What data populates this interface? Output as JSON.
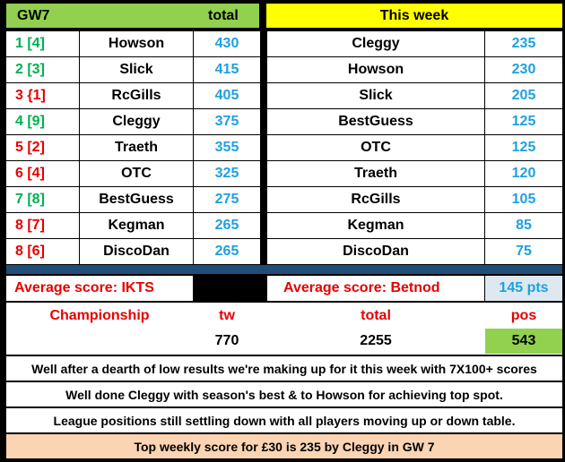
{
  "left_header": {
    "label": "GW7",
    "total_label": "total"
  },
  "right_header": {
    "label": "This week"
  },
  "standings": [
    {
      "pos": "1 [4]",
      "pos_color": "green",
      "name": "Howson",
      "score": "430"
    },
    {
      "pos": "2 [3]",
      "pos_color": "green",
      "name": "Slick",
      "score": "415"
    },
    {
      "pos": "3 {1]",
      "pos_color": "red",
      "name": "RcGills",
      "score": "405"
    },
    {
      "pos": "4 [9]",
      "pos_color": "green",
      "name": "Cleggy",
      "score": "375"
    },
    {
      "pos": "5 [2]",
      "pos_color": "red",
      "name": "Traeth",
      "score": "355"
    },
    {
      "pos": "6 [4]",
      "pos_color": "red",
      "name": "OTC",
      "score": "325"
    },
    {
      "pos": "7 [8]",
      "pos_color": "green",
      "name": "BestGuess",
      "score": "275"
    },
    {
      "pos": "8 [7]",
      "pos_color": "red",
      "name": "Kegman",
      "score": "265"
    },
    {
      "pos": "8 [6]",
      "pos_color": "red",
      "name": "DiscoDan",
      "score": "265"
    }
  ],
  "this_week": [
    {
      "name": "Cleggy",
      "score": "235"
    },
    {
      "name": "Howson",
      "score": "230"
    },
    {
      "name": "Slick",
      "score": "205"
    },
    {
      "name": "BestGuess",
      "score": "125"
    },
    {
      "name": "OTC",
      "score": "125"
    },
    {
      "name": "Traeth",
      "score": "120"
    },
    {
      "name": "RcGills",
      "score": "105"
    },
    {
      "name": "Kegman",
      "score": "85"
    },
    {
      "name": "DiscoDan",
      "score": "75"
    }
  ],
  "averages": {
    "ikts_label": "Average score: IKTS",
    "betnod_label": "Average score: Betnod",
    "betnod_value": "145 pts"
  },
  "championship": {
    "label": "Championship",
    "tw_label": "tw",
    "total_label": "total",
    "pos_label": "pos",
    "tw_value": "770",
    "total_value": "2255",
    "pos_value": "543"
  },
  "comments": [
    "Well after a dearth of low results we're making up for it this week with 7X100+ scores",
    "Well done Cleggy with season's best & to Howson for achieving top spot.",
    "League positions still settling down with all players moving up or down table."
  ],
  "footer": {
    "text": "Top weekly score for £30 is 235 by Cleggy in GW 7"
  },
  "colors": {
    "left_header_bg": "#92d050",
    "right_header_bg": "#ffff00",
    "divider_bg": "#1f4e79",
    "pts_bg": "#dde8f0",
    "pos_bg": "#92d050",
    "footer_bg": "#fbd4b4"
  }
}
